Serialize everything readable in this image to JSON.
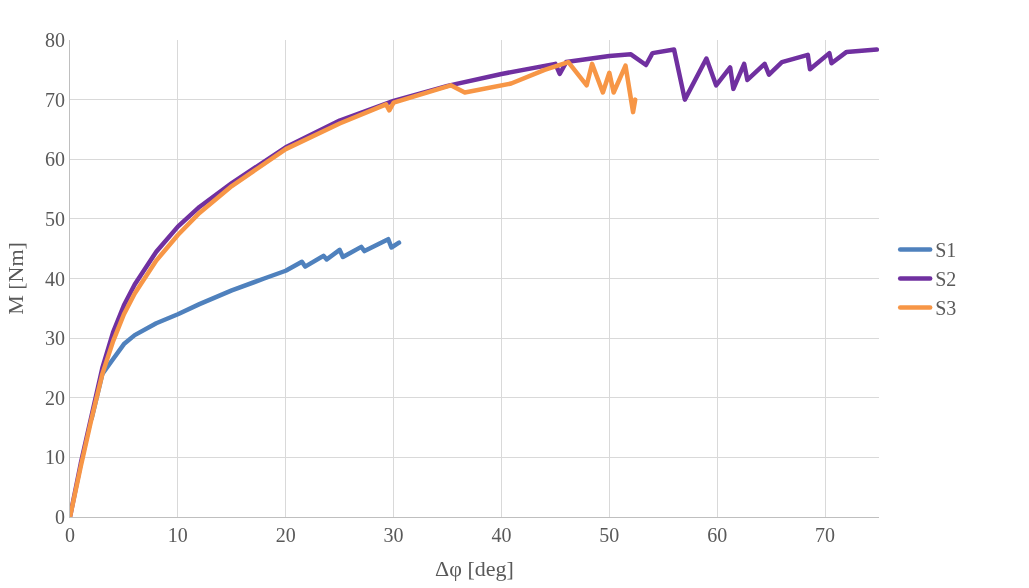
{
  "chart_data": {
    "type": "line",
    "xlabel": "Δφ [deg]",
    "ylabel": "M [Nm]",
    "xlim": [
      0,
      75
    ],
    "ylim": [
      0,
      80
    ],
    "xticks": [
      0,
      10,
      20,
      30,
      40,
      50,
      60,
      70
    ],
    "yticks": [
      0,
      10,
      20,
      30,
      40,
      50,
      60,
      70,
      80
    ],
    "grid": true,
    "legend": "right",
    "marker": "none",
    "line_style": "solid",
    "series": [
      {
        "name": "S1",
        "color": "#4f81bd",
        "x": [
          2,
          3,
          4,
          5,
          6,
          8,
          10,
          12,
          15,
          18,
          20,
          21.5,
          21.8,
          23.5,
          23.8,
          25,
          25.3,
          27,
          27.3,
          29.5,
          29.8,
          30.5
        ],
        "values": [
          16.5,
          24,
          26.5,
          29,
          30.5,
          32.5,
          34,
          35.7,
          38,
          40,
          41.3,
          42.8,
          42,
          43.8,
          43.2,
          44.8,
          43.6,
          45.3,
          44.6,
          46.6,
          45.2,
          46
        ]
      },
      {
        "name": "S2",
        "color": "#7030a0",
        "x": [
          0,
          1,
          2,
          3,
          4,
          5,
          6,
          8,
          10,
          12,
          15,
          20,
          25,
          30,
          35,
          40,
          45,
          45.4,
          46,
          50,
          52,
          53.4,
          54,
          56,
          57,
          59,
          59.9,
          61.2,
          61.5,
          62.5,
          62.8,
          64.4,
          64.8,
          66,
          68.4,
          68.6,
          70.4,
          70.6,
          72,
          74.8
        ],
        "values": [
          0,
          9,
          17,
          25,
          31,
          35.5,
          39,
          44.5,
          48.7,
          52,
          56,
          62,
          66.5,
          69.8,
          72.3,
          74.3,
          76,
          74.3,
          76.3,
          77.3,
          77.6,
          75.8,
          77.8,
          78.4,
          70,
          76.9,
          72.4,
          75.4,
          71.8,
          76,
          73.3,
          76,
          74.2,
          76.3,
          77.5,
          75.1,
          77.8,
          76.1,
          78,
          78.4
        ]
      },
      {
        "name": "S3",
        "color": "#f79646",
        "x": [
          0,
          1,
          2,
          3,
          4,
          5,
          6,
          8,
          10,
          12,
          15,
          20,
          25,
          29.3,
          29.6,
          30,
          35.3,
          36.6,
          40.9,
          44,
          46.2,
          47.9,
          48.4,
          49.4,
          50,
          50.4,
          51.5,
          52.2,
          52.4
        ],
        "values": [
          0,
          8.5,
          16.5,
          24,
          29.5,
          34,
          37.5,
          43,
          47.3,
          51,
          55.5,
          61.7,
          66,
          69.2,
          68.2,
          69.5,
          72.4,
          71.2,
          72.7,
          75,
          76.3,
          72.4,
          76,
          71.2,
          74.5,
          71.2,
          75.7,
          67.9,
          70
        ]
      }
    ]
  }
}
